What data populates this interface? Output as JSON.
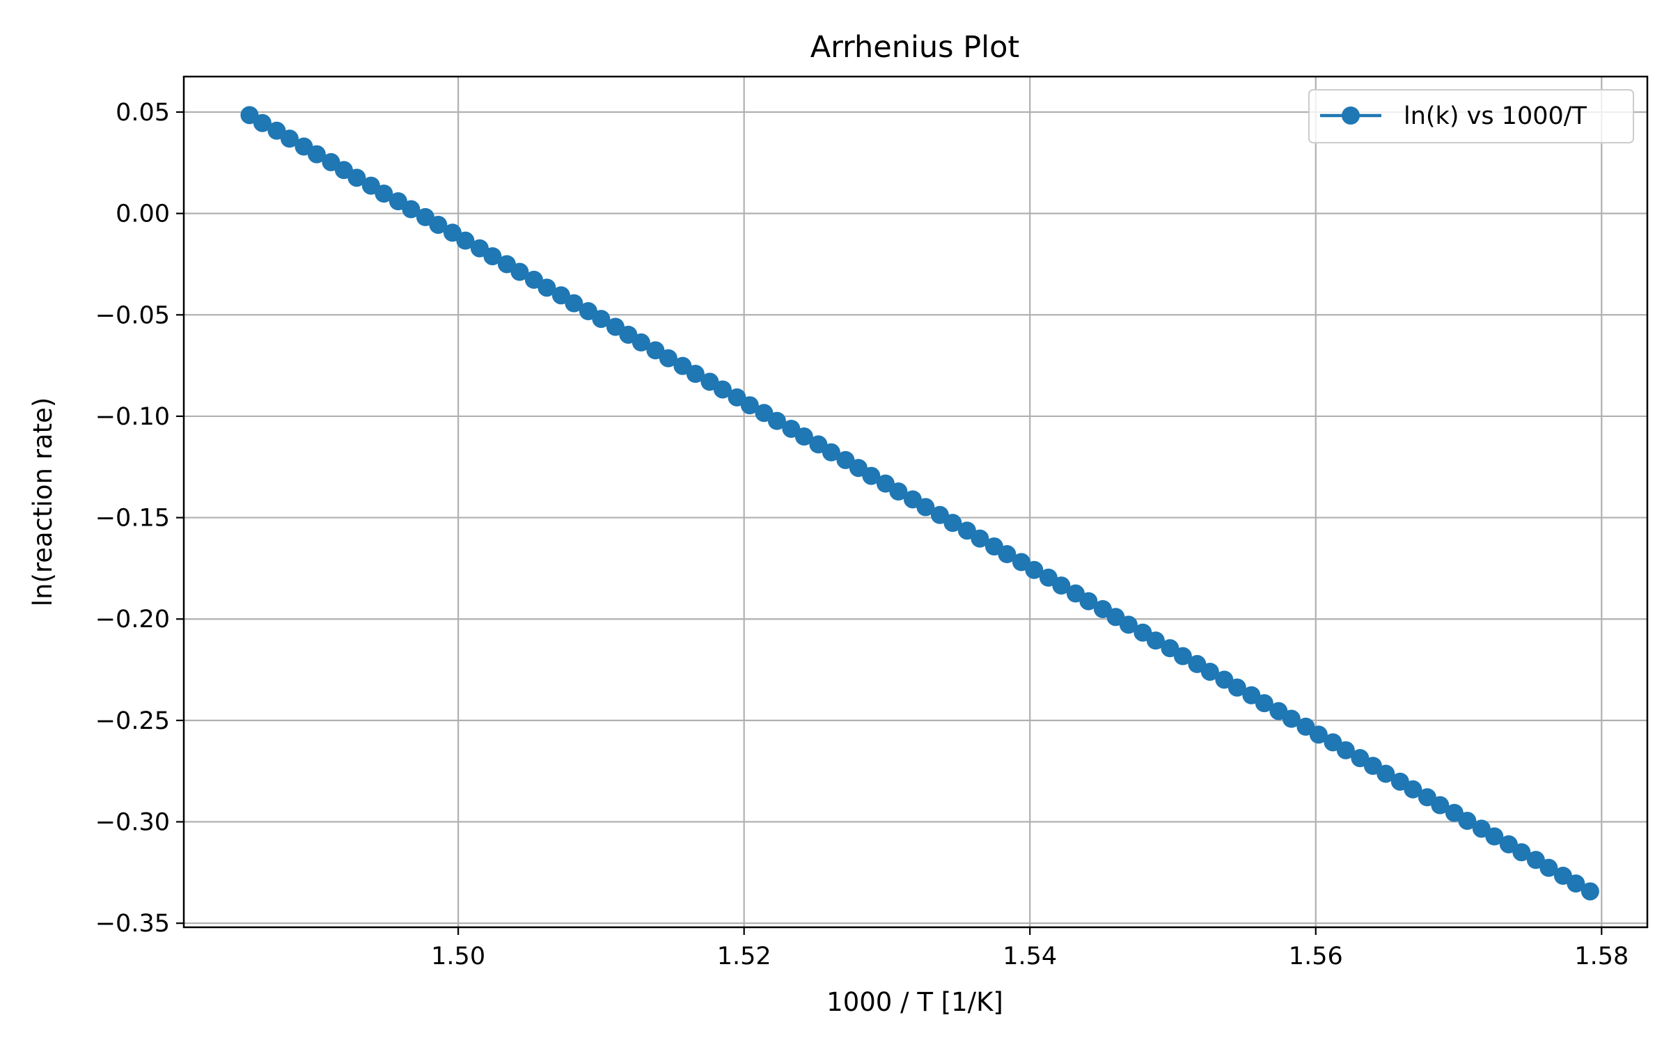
{
  "chart_data": {
    "type": "line",
    "title": "Arrhenius Plot",
    "xlabel": "1000 / T [1/K]",
    "ylabel": "ln(reaction rate)",
    "xlim": [
      1.4808,
      1.5832
    ],
    "ylim": [
      -0.352,
      0.0675
    ],
    "xticks": [
      1.5,
      1.52,
      1.54,
      1.56,
      1.58
    ],
    "xtick_labels": [
      "1.50",
      "1.52",
      "1.54",
      "1.56",
      "1.58"
    ],
    "yticks": [
      0.05,
      0.0,
      -0.05,
      -0.1,
      -0.15,
      -0.2,
      -0.25,
      -0.3,
      -0.35
    ],
    "ytick_labels": [
      "0.05",
      "0.00",
      "−0.05",
      "−0.10",
      "−0.15",
      "−0.20",
      "−0.25",
      "−0.30",
      "−0.35"
    ],
    "grid": true,
    "legend_position": "upper right",
    "series": [
      {
        "name": "ln(k) vs 1000/T",
        "color": "#1f77b4",
        "marker": "circle",
        "x": [
          1.4854,
          1.4863,
          1.4873,
          1.4882,
          1.4892,
          1.4901,
          1.4911,
          1.492,
          1.4929,
          1.4939,
          1.4948,
          1.4958,
          1.4967,
          1.4977,
          1.4986,
          1.4996,
          1.5005,
          1.5015,
          1.5024,
          1.5034,
          1.5043,
          1.5053,
          1.5062,
          1.5072,
          1.5081,
          1.5091,
          1.51,
          1.511,
          1.5119,
          1.5128,
          1.5138,
          1.5147,
          1.5157,
          1.5166,
          1.5176,
          1.5185,
          1.5195,
          1.5204,
          1.5214,
          1.5223,
          1.5233,
          1.5242,
          1.5252,
          1.5261,
          1.5271,
          1.528,
          1.5289,
          1.5299,
          1.5308,
          1.5318,
          1.5327,
          1.5337,
          1.5346,
          1.5356,
          1.5365,
          1.5375,
          1.5384,
          1.5394,
          1.5403,
          1.5413,
          1.5422,
          1.5432,
          1.5441,
          1.5451,
          1.546,
          1.5469,
          1.5479,
          1.5488,
          1.5498,
          1.5507,
          1.5517,
          1.5526,
          1.5536,
          1.5545,
          1.5555,
          1.5564,
          1.5574,
          1.5583,
          1.5593,
          1.5602,
          1.5612,
          1.5621,
          1.5631,
          1.564,
          1.5649,
          1.5659,
          1.5668,
          1.5678,
          1.5687,
          1.5697,
          1.5706,
          1.5716,
          1.5725,
          1.5735,
          1.5744,
          1.5754,
          1.5763,
          1.5773,
          1.5782,
          1.5792
        ],
        "y": [
          0.0485,
          0.0446,
          0.0408,
          0.0369,
          0.033,
          0.0292,
          0.0253,
          0.0214,
          0.0176,
          0.0137,
          0.0098,
          0.006,
          0.0021,
          -0.0018,
          -0.0056,
          -0.0095,
          -0.0134,
          -0.0172,
          -0.0211,
          -0.025,
          -0.0288,
          -0.0327,
          -0.0366,
          -0.0404,
          -0.0443,
          -0.0482,
          -0.052,
          -0.0559,
          -0.0598,
          -0.0636,
          -0.0675,
          -0.0714,
          -0.0752,
          -0.0791,
          -0.083,
          -0.0868,
          -0.0907,
          -0.0946,
          -0.0984,
          -0.1023,
          -0.1062,
          -0.11,
          -0.1139,
          -0.1178,
          -0.1216,
          -0.1255,
          -0.1294,
          -0.1332,
          -0.1371,
          -0.141,
          -0.1448,
          -0.1487,
          -0.1526,
          -0.1564,
          -0.1603,
          -0.1642,
          -0.168,
          -0.1719,
          -0.1758,
          -0.1796,
          -0.1835,
          -0.1874,
          -0.1912,
          -0.1951,
          -0.199,
          -0.2028,
          -0.2067,
          -0.2106,
          -0.2144,
          -0.2183,
          -0.2222,
          -0.226,
          -0.2299,
          -0.2338,
          -0.2376,
          -0.2415,
          -0.2454,
          -0.2492,
          -0.2531,
          -0.257,
          -0.2608,
          -0.2647,
          -0.2686,
          -0.2724,
          -0.2763,
          -0.2802,
          -0.284,
          -0.2879,
          -0.2918,
          -0.2956,
          -0.2995,
          -0.3034,
          -0.3072,
          -0.3111,
          -0.315,
          -0.3188,
          -0.3227,
          -0.3266,
          -0.3304,
          -0.3343
        ]
      }
    ]
  },
  "colors": {
    "series": "#1f77b4",
    "grid": "#b0b0b0",
    "axes": "#000000",
    "legend_border": "#cccccc"
  }
}
